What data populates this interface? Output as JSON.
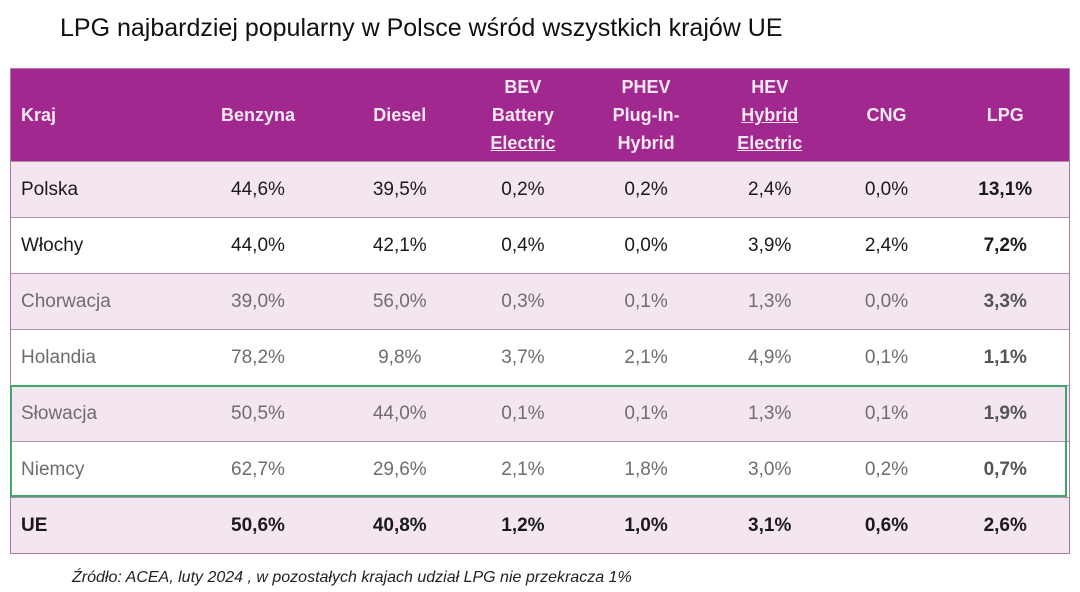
{
  "title": "LPG najbardziej popularny w Polsce wśród wszystkich krajów UE",
  "table": {
    "headers": [
      [
        "Kraj"
      ],
      [
        "Benzyna"
      ],
      [
        "Diesel"
      ],
      [
        "BEV",
        "Battery",
        "Electric"
      ],
      [
        "PHEV",
        "Plug-In-",
        "Hybrid"
      ],
      [
        "HEV",
        "Hybrid",
        "Electric"
      ],
      [
        "CNG"
      ],
      [
        "LPG"
      ]
    ],
    "rows": [
      [
        "Polska",
        "44,6%",
        "39,5%",
        "0,2%",
        "0,2%",
        "2,4%",
        "0,0%",
        "13,1%"
      ],
      [
        "Włochy",
        "44,0%",
        "42,1%",
        "0,4%",
        "0,0%",
        "3,9%",
        "2,4%",
        "7,2%"
      ],
      [
        "Chorwacja",
        "39,0%",
        "56,0%",
        "0,3%",
        "0,1%",
        "1,3%",
        "0,0%",
        "3,3%"
      ],
      [
        "Holandia",
        "78,2%",
        "9,8%",
        "3,7%",
        "2,1%",
        "4,9%",
        "0,1%",
        "1,1%"
      ],
      [
        "Słowacja",
        "50,5%",
        "44,0%",
        "0,1%",
        "0,1%",
        "1,3%",
        "0,1%",
        "1,9%"
      ],
      [
        "Niemcy",
        "62,7%",
        "29,6%",
        "2,1%",
        "1,8%",
        "3,0%",
        "0,2%",
        "0,7%"
      ],
      [
        "UE",
        "50,6%",
        "40,8%",
        "1,2%",
        "1,0%",
        "3,1%",
        "0,6%",
        "2,6%"
      ]
    ],
    "highlighted_rows": [
      "Słowacja",
      "Niemcy"
    ]
  },
  "colors": {
    "header": "#a0288f",
    "row_alt": "#f4e6f0",
    "highlight_border": "#3ca86a"
  },
  "source": "Źródło: ACEA, luty 2024 , w pozostałych krajach udział LPG nie przekracza 1%"
}
